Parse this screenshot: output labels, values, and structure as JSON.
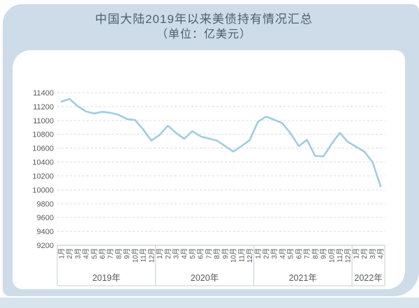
{
  "header": {
    "title_line1": "中国大陆2019年以来美债持有情况汇总",
    "title_line2": "（单位：亿美元）"
  },
  "chart_data": {
    "type": "line",
    "title": "中国大陆2019年以来美债持有情况汇总",
    "subtitle": "（单位：亿美元）",
    "ylabel": "亿美元",
    "xlabel": "",
    "ylim": [
      9200,
      11400
    ],
    "ytick_step": 200,
    "yticks": [
      11400,
      11200,
      11000,
      10800,
      10600,
      10400,
      10200,
      10000,
      9800,
      9600,
      9400,
      9200
    ],
    "grid": "horizontal-dashed",
    "legend": "none",
    "line_color": "#9ecde0",
    "grid_color": "#d9d9d9",
    "axis_color": "#b9c0c6",
    "cell_border_color": "#c6ccd2",
    "label_color": "#595959",
    "groups": [
      {
        "year": "2019年",
        "months": [
          "1月",
          "2月",
          "3月",
          "4月",
          "5月",
          "6月",
          "7月",
          "8月",
          "9月",
          "10月",
          "11月",
          "12月"
        ],
        "values": [
          11270,
          11310,
          11205,
          11130,
          11100,
          11125,
          11110,
          11080,
          11020,
          11005,
          10870,
          10710
        ]
      },
      {
        "year": "2020年",
        "months": [
          "1月",
          "2月",
          "3月",
          "4月",
          "5月",
          "6月",
          "7月",
          "8月",
          "9月",
          "10月",
          "11月",
          "12月"
        ],
        "values": [
          10790,
          10925,
          10820,
          10735,
          10845,
          10770,
          10740,
          10710,
          10630,
          10550,
          10630,
          10715
        ]
      },
      {
        "year": "2021年",
        "months": [
          "1月",
          "2月",
          "3月",
          "4月",
          "5月",
          "6月",
          "7月",
          "8月",
          "9月",
          "10月",
          "11月",
          "12月"
        ],
        "values": [
          10980,
          11055,
          11010,
          10960,
          10810,
          10630,
          10720,
          10490,
          10480,
          10660,
          10820,
          10690
        ]
      },
      {
        "year": "2022年",
        "months": [
          "1月",
          "2月",
          "3月",
          "4月"
        ],
        "values": [
          10620,
          10550,
          10400,
          10050
        ]
      }
    ]
  }
}
